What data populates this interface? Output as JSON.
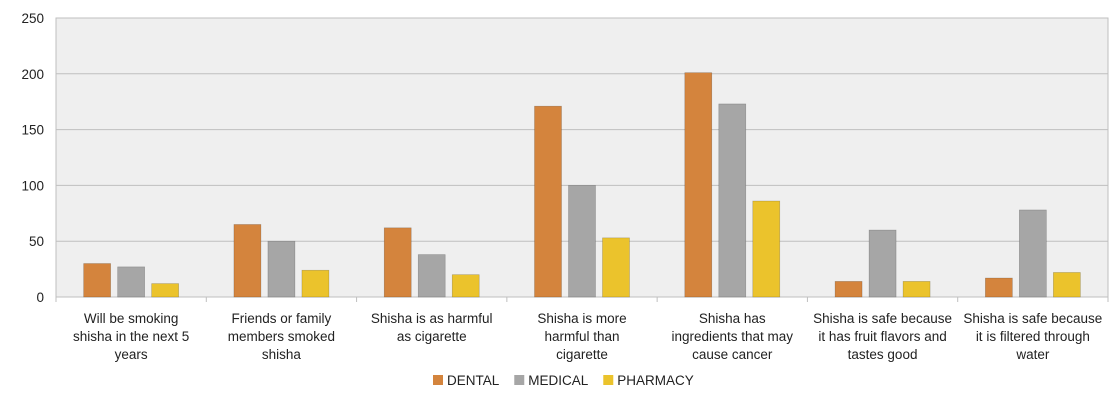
{
  "chart_data": {
    "type": "bar",
    "categories": [
      [
        "Will be smoking",
        "shisha in the next 5",
        "years"
      ],
      [
        "Friends or family",
        "members smoked",
        "shisha"
      ],
      [
        "Shisha is as harmful",
        "as cigarette"
      ],
      [
        "Shisha is more",
        "harmful than",
        "cigarette"
      ],
      [
        "Shisha has",
        "ingredients that may",
        "cause cancer"
      ],
      [
        "Shisha is safe because",
        "it has fruit flavors and",
        "tastes good"
      ],
      [
        "Shisha is safe because",
        "it is filtered through",
        "water"
      ]
    ],
    "series": [
      {
        "name": "DENTAL",
        "color": "#D4843D",
        "values": [
          30,
          65,
          62,
          171,
          201,
          14,
          17
        ]
      },
      {
        "name": "MEDICAL",
        "color": "#A6A6A6",
        "values": [
          27,
          50,
          38,
          100,
          173,
          60,
          78
        ]
      },
      {
        "name": "PHARMACY",
        "color": "#EBC32C",
        "values": [
          12,
          24,
          20,
          53,
          86,
          14,
          22
        ]
      }
    ],
    "ylim": [
      0,
      250
    ],
    "yticks": [
      0,
      50,
      100,
      150,
      200,
      250
    ],
    "grid": true,
    "plot_background": "#EFEFEF",
    "legend_position": "bottom"
  }
}
